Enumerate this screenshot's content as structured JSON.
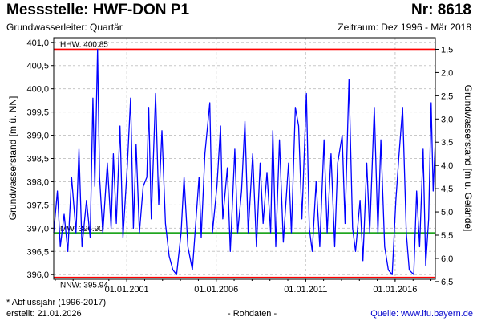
{
  "header": {
    "title": "Messstelle: HWF-DON P1",
    "number": "Nr: 8618",
    "aquifer": "Grundwasserleiter: Quartär",
    "period": "Zeitraum: Dez 1996 - Mär 2018"
  },
  "footer": {
    "footnote": "* Abflussjahr (1996-2017)",
    "created": "erstellt:  21.01.2026",
    "rohdaten": "- Rohdaten -",
    "source": "Quelle: www.lfu.bayern.de"
  },
  "chart_data": {
    "type": "line",
    "ylabel": "Grundwasserstand [m ü. NN]",
    "y2label": "Grundwasserstand [m u. Gelände]",
    "ylim": [
      395.9,
      401.1
    ],
    "yticks": [
      "401,0",
      "400,5",
      "400,0",
      "399,5",
      "399,0",
      "398,5",
      "398,0",
      "397,5",
      "397,0",
      "396,5",
      "396,0"
    ],
    "y2ticks": [
      "1,5",
      "2,0",
      "2,5",
      "3,0",
      "3,5",
      "4,0",
      "4,5",
      "5,0",
      "5,5",
      "6,0",
      "6,5"
    ],
    "xlim": [
      "1996-12-01",
      "2018-03-31"
    ],
    "xticks": [
      "01.01.2001",
      "01.01.2006",
      "01.01.2011",
      "01.01.2016"
    ],
    "grid": true,
    "reference_lines": [
      {
        "name": "HHW",
        "label": "HHW: 400.85",
        "value": 400.85,
        "color": "#ff0000"
      },
      {
        "name": "MW",
        "label": "MW: 396.90",
        "value": 396.9,
        "color": "#009900"
      },
      {
        "name": "NNW",
        "label": "NNW: 395.94",
        "value": 395.94,
        "color": "#ff0000"
      }
    ],
    "series": [
      {
        "color": "#0000ff",
        "points": [
          [
            "1996-12-01",
            396.9
          ],
          [
            "1997-02-15",
            397.8
          ],
          [
            "1997-04-15",
            396.6
          ],
          [
            "1997-07-01",
            397.3
          ],
          [
            "1997-09-15",
            396.5
          ],
          [
            "1997-12-01",
            398.1
          ],
          [
            "1998-03-01",
            396.9
          ],
          [
            "1998-05-01",
            398.7
          ],
          [
            "1998-07-01",
            396.6
          ],
          [
            "1998-10-01",
            397.6
          ],
          [
            "1998-12-15",
            396.8
          ],
          [
            "1999-02-10",
            399.8
          ],
          [
            "1999-03-20",
            397.9
          ],
          [
            "1999-05-15",
            400.85
          ],
          [
            "1999-06-25",
            398.1
          ],
          [
            "1999-09-01",
            396.9
          ],
          [
            "1999-12-01",
            398.4
          ],
          [
            "2000-02-15",
            397.0
          ],
          [
            "2000-04-01",
            398.6
          ],
          [
            "2000-06-01",
            397.1
          ],
          [
            "2000-08-15",
            399.2
          ],
          [
            "2000-10-15",
            396.8
          ],
          [
            "2001-01-15",
            398.4
          ],
          [
            "2001-03-20",
            399.8
          ],
          [
            "2001-05-15",
            397.0
          ],
          [
            "2001-07-10",
            398.8
          ],
          [
            "2001-09-15",
            396.9
          ],
          [
            "2001-12-01",
            397.9
          ],
          [
            "2002-02-15",
            398.1
          ],
          [
            "2002-03-25",
            399.6
          ],
          [
            "2002-05-15",
            397.2
          ],
          [
            "2002-08-12",
            399.9
          ],
          [
            "2002-10-15",
            397.5
          ],
          [
            "2002-12-20",
            399.1
          ],
          [
            "2003-03-01",
            397.1
          ],
          [
            "2003-05-15",
            396.4
          ],
          [
            "2003-08-01",
            396.1
          ],
          [
            "2003-10-15",
            396.0
          ],
          [
            "2004-01-15",
            396.9
          ],
          [
            "2004-03-15",
            398.1
          ],
          [
            "2004-06-01",
            396.6
          ],
          [
            "2004-09-01",
            396.1
          ],
          [
            "2005-01-15",
            398.1
          ],
          [
            "2005-03-01",
            396.8
          ],
          [
            "2005-05-15",
            398.6
          ],
          [
            "2005-08-23",
            399.7
          ],
          [
            "2005-10-15",
            396.9
          ],
          [
            "2006-01-15",
            397.9
          ],
          [
            "2006-03-30",
            399.2
          ],
          [
            "2006-05-15",
            397.2
          ],
          [
            "2006-08-15",
            398.3
          ],
          [
            "2006-10-15",
            396.5
          ],
          [
            "2007-01-15",
            398.7
          ],
          [
            "2007-03-15",
            396.9
          ],
          [
            "2007-06-01",
            397.8
          ],
          [
            "2007-08-10",
            399.3
          ],
          [
            "2007-10-15",
            396.9
          ],
          [
            "2008-01-15",
            398.6
          ],
          [
            "2008-04-01",
            396.6
          ],
          [
            "2008-06-15",
            398.4
          ],
          [
            "2008-08-15",
            397.1
          ],
          [
            "2008-11-01",
            398.2
          ],
          [
            "2009-01-15",
            396.9
          ],
          [
            "2009-03-01",
            399.1
          ],
          [
            "2009-05-01",
            396.6
          ],
          [
            "2009-07-15",
            398.9
          ],
          [
            "2009-10-01",
            396.7
          ],
          [
            "2010-01-15",
            398.4
          ],
          [
            "2010-03-15",
            396.9
          ],
          [
            "2010-06-03",
            399.6
          ],
          [
            "2010-08-10",
            399.2
          ],
          [
            "2010-10-15",
            397.2
          ],
          [
            "2011-01-15",
            399.9
          ],
          [
            "2011-03-15",
            397.0
          ],
          [
            "2011-05-15",
            396.5
          ],
          [
            "2011-08-01",
            398.0
          ],
          [
            "2011-10-15",
            396.6
          ],
          [
            "2012-01-10",
            398.9
          ],
          [
            "2012-03-15",
            396.9
          ],
          [
            "2012-06-01",
            398.6
          ],
          [
            "2012-08-15",
            396.6
          ],
          [
            "2012-10-15",
            398.4
          ],
          [
            "2013-01-15",
            399.0
          ],
          [
            "2013-03-15",
            397.1
          ],
          [
            "2013-06-02",
            400.2
          ],
          [
            "2013-08-15",
            397.0
          ],
          [
            "2013-10-15",
            396.5
          ],
          [
            "2014-01-15",
            397.6
          ],
          [
            "2014-03-15",
            396.3
          ],
          [
            "2014-06-01",
            398.4
          ],
          [
            "2014-08-01",
            396.9
          ],
          [
            "2014-11-01",
            399.6
          ],
          [
            "2015-01-15",
            396.9
          ],
          [
            "2015-03-15",
            398.9
          ],
          [
            "2015-06-01",
            396.6
          ],
          [
            "2015-08-15",
            396.1
          ],
          [
            "2015-11-01",
            396.0
          ],
          [
            "2016-01-15",
            397.6
          ],
          [
            "2016-03-15",
            398.5
          ],
          [
            "2016-06-01",
            399.6
          ],
          [
            "2016-08-15",
            396.9
          ],
          [
            "2016-10-15",
            396.1
          ],
          [
            "2017-01-15",
            396.0
          ],
          [
            "2017-03-15",
            397.8
          ],
          [
            "2017-05-15",
            396.6
          ],
          [
            "2017-07-26",
            398.7
          ],
          [
            "2017-09-15",
            396.2
          ],
          [
            "2017-11-15",
            397.2
          ],
          [
            "2018-01-05",
            399.7
          ],
          [
            "2018-02-15",
            397.8
          ],
          [
            "2018-03-31",
            398.9
          ]
        ]
      }
    ]
  }
}
